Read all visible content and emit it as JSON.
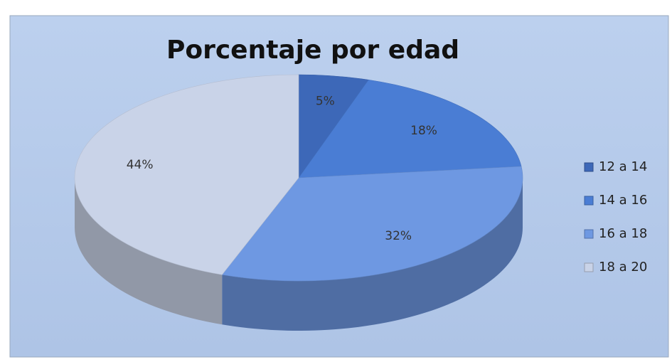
{
  "chart_data": {
    "type": "pie",
    "title": "Porcentaje por edad",
    "categories": [
      "12 a 14",
      "14 a 16",
      "16 a 18",
      "18 a 20"
    ],
    "values": [
      5,
      18,
      32,
      44
    ],
    "value_labels": [
      "5%",
      "18%",
      "32%",
      "44%"
    ],
    "colors": [
      "#3d68b8",
      "#4a7dd4",
      "#6e98e2",
      "#c9d3e8"
    ],
    "legend": "right"
  }
}
